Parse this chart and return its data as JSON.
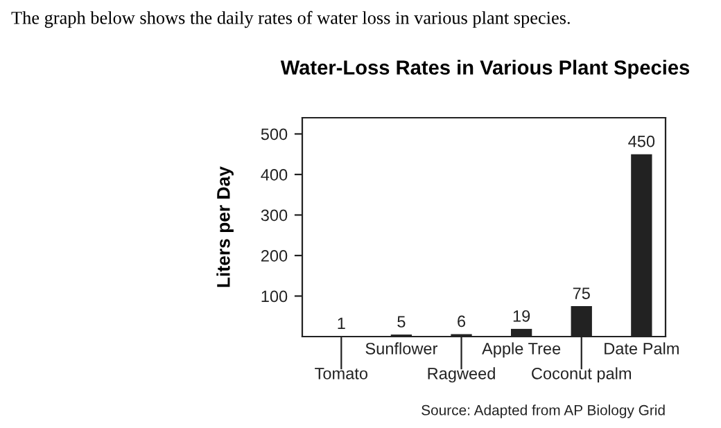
{
  "chart_data": {
    "type": "bar",
    "title": "Water-Loss Rates in Various Plant Species",
    "subtitle": "The graph below shows the daily rates of water loss in various plant species.",
    "ylabel": "Liters per Day",
    "categories": [
      "Tomato",
      "Sunflower",
      "Ragweed",
      "Apple Tree",
      "Coconut palm",
      "Date Palm"
    ],
    "values": [
      1,
      5,
      6,
      19,
      75,
      450
    ],
    "color": "#222222",
    "data_labels": true,
    "ylim": [
      0,
      540
    ],
    "yticks": [
      100,
      200,
      300,
      400,
      500
    ],
    "grid": false,
    "annotations": [
      "Source: Adapted from AP Biology Grid"
    ]
  }
}
